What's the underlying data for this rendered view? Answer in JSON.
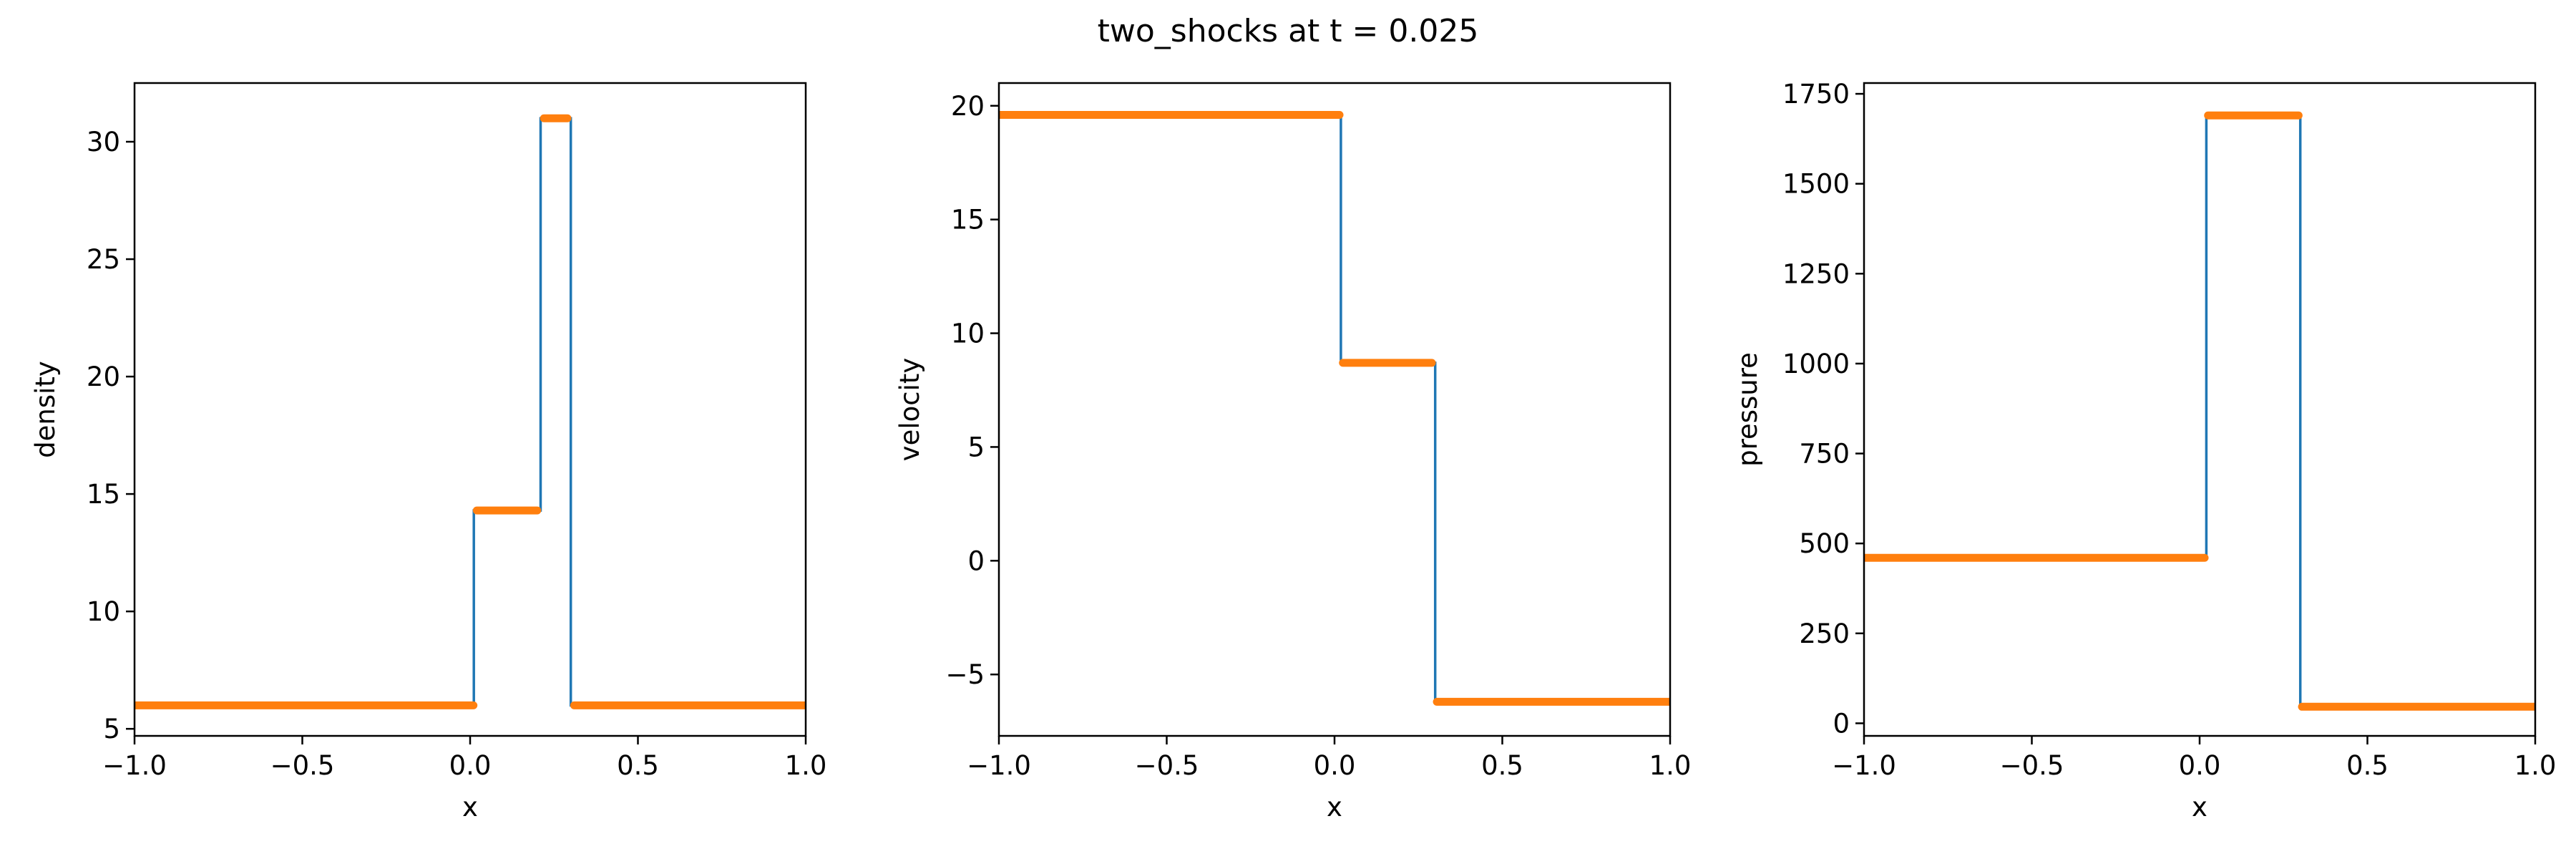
{
  "figure": {
    "suptitle": "two_shocks at t = 0.025"
  },
  "colors": {
    "exact": "#1f77b4",
    "numerical": "#ff7f0e",
    "axes": "#000000"
  },
  "chart_data": [
    {
      "type": "line",
      "xlabel": "x",
      "ylabel": "density",
      "xlim": [
        -1.0,
        1.0
      ],
      "ylim": [
        4.7,
        32.5
      ],
      "xticks": [
        -1.0,
        -0.5,
        0.0,
        0.5,
        1.0
      ],
      "xtick_labels": [
        "−1.0",
        "−0.5",
        "0.0",
        "0.5",
        "1.0"
      ],
      "yticks": [
        5,
        10,
        15,
        20,
        25,
        30
      ],
      "ytick_labels": [
        "5",
        "10",
        "15",
        "20",
        "25",
        "30"
      ],
      "grid": false,
      "series": [
        {
          "style": "line",
          "x": [
            -1.0,
            0.011,
            0.011,
            0.21,
            0.21,
            0.3,
            0.3,
            1.0
          ],
          "y": [
            6.0,
            6.0,
            14.3,
            14.3,
            31.0,
            31.0,
            6.0,
            6.0
          ]
        },
        {
          "style": "markers",
          "segments": [
            {
              "x": [
                -1.0,
                0.01
              ],
              "y": 6.0
            },
            {
              "x": [
                0.02,
                0.2
              ],
              "y": 14.3
            },
            {
              "x": [
                0.22,
                0.29
              ],
              "y": 31.0
            },
            {
              "x": [
                0.31,
                1.0
              ],
              "y": 6.0
            }
          ]
        }
      ]
    },
    {
      "type": "line",
      "xlabel": "x",
      "ylabel": "velocity",
      "xlim": [
        -1.0,
        1.0
      ],
      "ylim": [
        -7.7,
        21.0
      ],
      "xticks": [
        -1.0,
        -0.5,
        0.0,
        0.5,
        1.0
      ],
      "xtick_labels": [
        "−1.0",
        "−0.5",
        "0.0",
        "0.5",
        "1.0"
      ],
      "yticks": [
        -5,
        0,
        5,
        10,
        15,
        20
      ],
      "ytick_labels": [
        "−5",
        "0",
        "5",
        "10",
        "15",
        "20"
      ],
      "grid": false,
      "series": [
        {
          "style": "line",
          "x": [
            -1.0,
            0.019,
            0.019,
            0.3,
            0.3,
            1.0
          ],
          "y": [
            19.6,
            19.6,
            8.7,
            8.7,
            -6.2,
            -6.2
          ]
        },
        {
          "style": "markers",
          "segments": [
            {
              "x": [
                -1.0,
                0.015
              ],
              "y": 19.6
            },
            {
              "x": [
                0.025,
                0.29
              ],
              "y": 8.7
            },
            {
              "x": [
                0.305,
                1.0
              ],
              "y": -6.2
            }
          ]
        }
      ]
    },
    {
      "type": "line",
      "xlabel": "x",
      "ylabel": "pressure",
      "xlim": [
        -1.0,
        1.0
      ],
      "ylim": [
        -35,
        1780
      ],
      "xticks": [
        -1.0,
        -0.5,
        0.0,
        0.5,
        1.0
      ],
      "xtick_labels": [
        "−1.0",
        "−0.5",
        "0.0",
        "0.5",
        "1.0"
      ],
      "yticks": [
        0,
        250,
        500,
        750,
        1000,
        1250,
        1500,
        1750
      ],
      "ytick_labels": [
        "0",
        "250",
        "500",
        "750",
        "1000",
        "1250",
        "1500",
        "1750"
      ],
      "grid": false,
      "series": [
        {
          "style": "line",
          "x": [
            -1.0,
            0.02,
            0.02,
            0.3,
            0.3,
            1.0
          ],
          "y": [
            460,
            460,
            1690,
            1690,
            46,
            46
          ]
        },
        {
          "style": "markers",
          "segments": [
            {
              "x": [
                -1.0,
                0.015
              ],
              "y": 460
            },
            {
              "x": [
                0.025,
                0.295
              ],
              "y": 1690
            },
            {
              "x": [
                0.305,
                1.0
              ],
              "y": 46
            }
          ]
        }
      ]
    }
  ]
}
